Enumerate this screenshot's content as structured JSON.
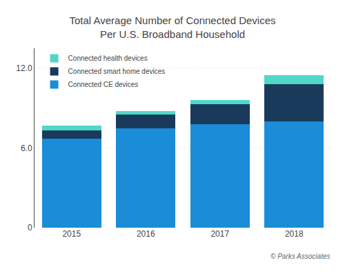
{
  "chart_data": {
    "type": "bar",
    "stacked": true,
    "title": "Total Average Number of Connected Devices\nPer U.S. Broadband Household",
    "categories": [
      "2015",
      "2016",
      "2017",
      "2018"
    ],
    "series": [
      {
        "name": "Connected CE devices",
        "color": "#1a8cd8",
        "values": [
          6.7,
          7.5,
          7.8,
          8.0
        ]
      },
      {
        "name": "Connected smart home devices",
        "color": "#1a3a5c",
        "values": [
          0.6,
          1.0,
          1.5,
          2.8
        ]
      },
      {
        "name": "Connected health devices",
        "color": "#4fd8c8",
        "values": [
          0.4,
          0.3,
          0.3,
          0.7
        ]
      }
    ],
    "ylim": [
      0,
      13.5
    ],
    "yticks": [
      0,
      {
        "value": 6.0,
        "label": "6.0"
      },
      {
        "value": 12.0,
        "label": "12.0"
      }
    ],
    "grid": true,
    "legend": "upper left",
    "annotations": [
      "© Parks Associates"
    ]
  }
}
